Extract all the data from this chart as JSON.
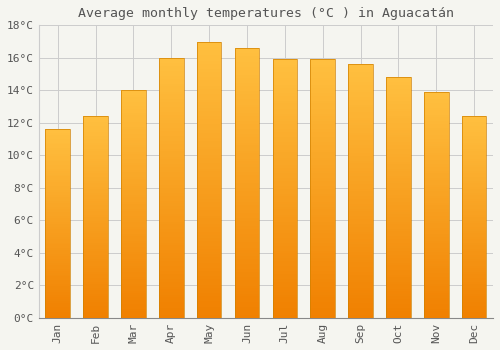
{
  "title": "Average monthly temperatures (°C ) in Aguacatán",
  "months": [
    "Jan",
    "Feb",
    "Mar",
    "Apr",
    "May",
    "Jun",
    "Jul",
    "Aug",
    "Sep",
    "Oct",
    "Nov",
    "Dec"
  ],
  "values": [
    11.6,
    12.4,
    14.0,
    16.0,
    17.0,
    16.6,
    15.9,
    15.9,
    15.6,
    14.8,
    13.9,
    12.4
  ],
  "bar_color_top": "#FFB733",
  "bar_color_bottom": "#F08000",
  "background_color": "#F5F5F0",
  "plot_bg_color": "#F5F5F0",
  "grid_color": "#CCCCCC",
  "text_color": "#555555",
  "ylim": [
    0,
    18
  ],
  "ytick_step": 2,
  "title_fontsize": 9.5,
  "tick_fontsize": 8,
  "font_family": "monospace"
}
